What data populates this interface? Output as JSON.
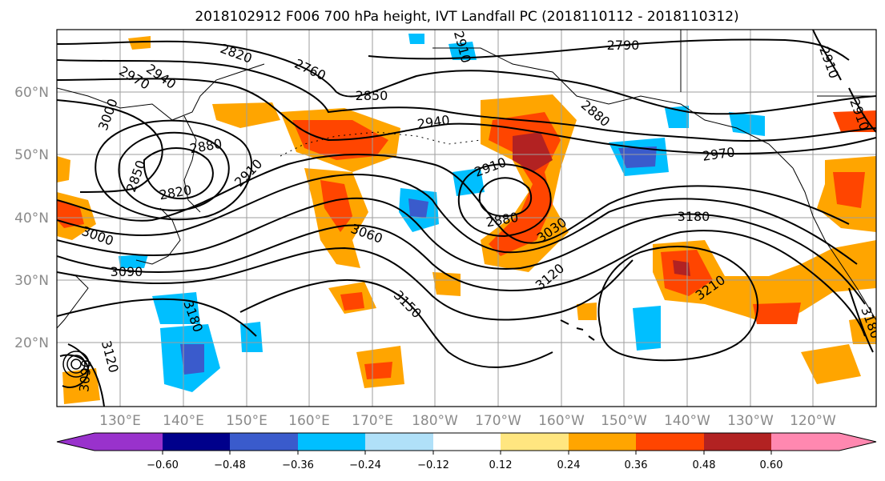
{
  "figure": {
    "title": "2018102912 F006 700 hPa height, IVT Landfall PC (2018110112 - 2018110312)",
    "lat_labels": [
      "60°N",
      "50°N",
      "40°N",
      "30°N",
      "20°N"
    ],
    "lon_labels": [
      "130°E",
      "140°E",
      "150°E",
      "160°E",
      "170°E",
      "180°W",
      "170°W",
      "160°W",
      "150°W",
      "140°W",
      "130°W",
      "120°W"
    ]
  },
  "colorbar": {
    "ticks": [
      "−0.60",
      "−0.48",
      "−0.36",
      "−0.24",
      "−0.12",
      "0.12",
      "0.24",
      "0.36",
      "0.48",
      "0.60"
    ],
    "colors": [
      "#9932cc",
      "#00008b",
      "#3a5bcc",
      "#00bfff",
      "#b0e0f8",
      "#ffffff",
      "#ffe680",
      "#ffa500",
      "#ff4500",
      "#b22222",
      "#ff88b0"
    ]
  },
  "contour_labels": [
    {
      "text": "2790"
    },
    {
      "text": "2820"
    },
    {
      "text": "2760"
    },
    {
      "text": "2970"
    },
    {
      "text": "2940"
    },
    {
      "text": "3000"
    },
    {
      "text": "2850"
    },
    {
      "text": "2880"
    },
    {
      "text": "2940"
    },
    {
      "text": "2880"
    },
    {
      "text": "2910"
    },
    {
      "text": "2970"
    },
    {
      "text": "2850"
    },
    {
      "text": "2820"
    },
    {
      "text": "2910"
    },
    {
      "text": "2910"
    },
    {
      "text": "3180"
    },
    {
      "text": "2880"
    },
    {
      "text": "3060"
    },
    {
      "text": "3030"
    },
    {
      "text": "3000"
    },
    {
      "text": "3090"
    },
    {
      "text": "3120"
    },
    {
      "text": "3210"
    },
    {
      "text": "3150"
    },
    {
      "text": "3180"
    },
    {
      "text": "3120"
    },
    {
      "text": "3090"
    },
    {
      "text": "3180"
    },
    {
      "text": "2910"
    },
    {
      "text": "2910"
    }
  ]
}
